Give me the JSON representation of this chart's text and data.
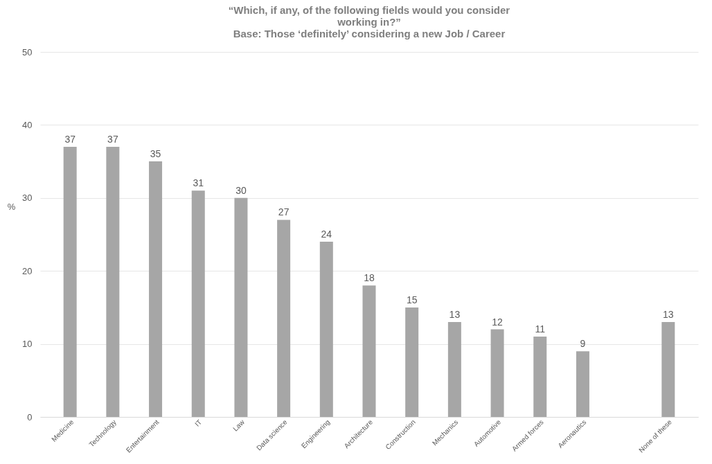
{
  "chart_data": {
    "type": "bar",
    "title": "“Which, if any, of the following fields would you consider working in?”",
    "subtitle": "Base: Those ‘definitely’ considering a new Job / Career",
    "ylabel": "%",
    "categories": [
      "Medicine",
      "Technology",
      "Entertainment",
      "IT",
      "Law",
      "Data science",
      "Engineering",
      "Architecture",
      "Construction",
      "Mechanics",
      "Automotive",
      "Armed forces",
      "Aeronautics",
      null,
      "None of these"
    ],
    "values": [
      37,
      37,
      35,
      31,
      30,
      27,
      24,
      18,
      15,
      13,
      12,
      11,
      9,
      null,
      13
    ],
    "color": "#a6a6a6",
    "ylim": [
      0,
      50
    ],
    "yticks": [
      0,
      10,
      20,
      30,
      40,
      50
    ],
    "grid": "y",
    "data_labels": true
  }
}
